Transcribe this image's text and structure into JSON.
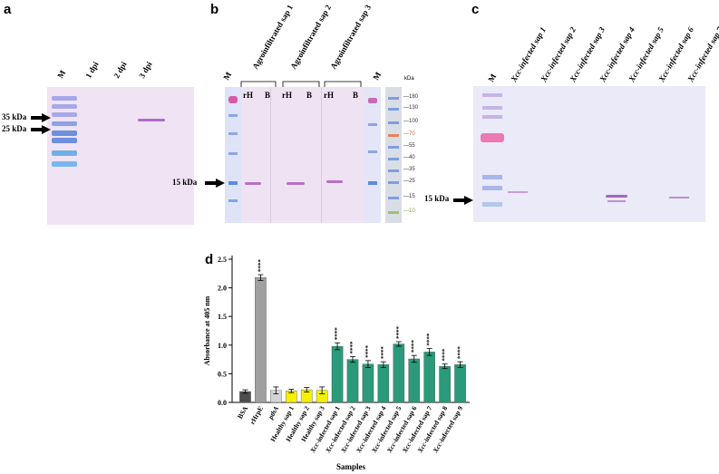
{
  "panel_a": {
    "letter": "a",
    "lanes": [
      "M",
      "1 dpi",
      "2 dpi",
      "3 dpi"
    ],
    "markers": [
      "35 kDa",
      "25 kDa"
    ]
  },
  "panel_b": {
    "letter": "b",
    "lane_m_left": "M",
    "lane_m_right": "M",
    "groups": [
      "Agroinfiltrated sap 1",
      "Agroinfiltrated sap 2",
      "Agroinfiltrated sap 3"
    ],
    "sublanes": [
      "rH",
      "B",
      "rH",
      "B",
      "rH",
      "B"
    ],
    "marker": "15 kDa",
    "ladder_unit": "kDa",
    "ladder_values": [
      "180",
      "130",
      "100",
      "70",
      "55",
      "40",
      "35",
      "25",
      "15",
      "10"
    ]
  },
  "panel_c": {
    "letter": "c",
    "lane_m": "M",
    "lanes": [
      "Xcc-infected sap 1",
      "Xcc-infected sap 2",
      "Xcc-infected sap 3",
      "Xcc-infected sap 4",
      "Xcc-infected sap 5",
      "Xcc-infected sap 6",
      "Xcc-infected sap 7"
    ],
    "marker": "15 kDa"
  },
  "panel_d": {
    "letter": "d"
  },
  "chart_data": {
    "type": "bar",
    "categories": [
      "BSA",
      "rHrpE",
      "pthA",
      "Healthy sap 1",
      "Healthy sap 2",
      "Healthy sap 3",
      "Xcc-infected sap 1",
      "Xcc-infected sap 2",
      "Xcc-infected sap 3",
      "Xcc-infected sap 4",
      "Xcc-infected sap 5",
      "Xcc-infected sap 6",
      "Xcc-infected sap 7",
      "Xcc-infected sap 8",
      "Xcc-infected sap 9"
    ],
    "values": [
      0.19,
      2.18,
      0.21,
      0.2,
      0.22,
      0.21,
      0.98,
      0.75,
      0.67,
      0.66,
      1.02,
      0.76,
      0.88,
      0.63,
      0.66
    ],
    "errors": [
      0.03,
      0.05,
      0.06,
      0.03,
      0.04,
      0.06,
      0.06,
      0.05,
      0.06,
      0.05,
      0.04,
      0.06,
      0.06,
      0.04,
      0.05
    ],
    "significance": [
      "",
      "****",
      "",
      "",
      "",
      "",
      "****",
      "****",
      "****",
      "****",
      "****",
      "****",
      "****",
      "****",
      "****"
    ],
    "colors": [
      "#4d4d4d",
      "#a0a0a0",
      "#d4d4d4",
      "#f4f000",
      "#f4f000",
      "#f4f000",
      "#2a9a7a",
      "#2a9a7a",
      "#2a9a7a",
      "#2a9a7a",
      "#2a9a7a",
      "#2a9a7a",
      "#2a9a7a",
      "#2a9a7a",
      "#2a9a7a"
    ],
    "xlabel": "Samples",
    "ylabel": "Absorbance at 405 nm",
    "ylim": [
      0,
      2.5
    ],
    "yticks": [
      "0.0",
      "0.5",
      "1.0",
      "1.5",
      "2.0",
      "2.5"
    ],
    "grid": false,
    "legend": "none"
  }
}
